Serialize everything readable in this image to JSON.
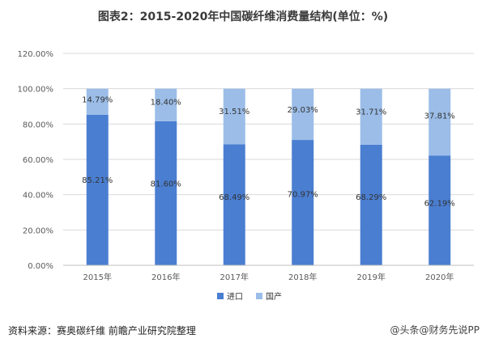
{
  "header": {
    "title": "图表2：2015-2020年中国碳纤维消费量结构(单位：%)"
  },
  "footer": {
    "source": "资料来源：赛奥碳纤维 前瞻产业研究院整理",
    "watermark": "@头条@财务先说PP"
  },
  "colors": {
    "import": "#4a7ed1",
    "domestic": "#9bbde8",
    "grid": "#d9d9d9",
    "axis": "#595959"
  },
  "chart_data": {
    "type": "bar",
    "stacked": true,
    "categories": [
      "2015年",
      "2016年",
      "2017年",
      "2018年",
      "2019年",
      "2020年"
    ],
    "series": [
      {
        "name": "进口",
        "values": [
          85.21,
          81.6,
          68.49,
          70.97,
          68.29,
          62.19
        ],
        "labels": [
          "85.21%",
          "81.60%",
          "68.49%",
          "70.97%",
          "68.29%",
          "62.19%"
        ]
      },
      {
        "name": "国产",
        "values": [
          14.79,
          18.4,
          31.51,
          29.03,
          31.71,
          37.81
        ],
        "labels": [
          "14.79%",
          "18.40%",
          "31.51%",
          "29.03%",
          "31.71%",
          "37.81%"
        ]
      }
    ],
    "yticks": [
      0,
      20,
      40,
      60,
      80,
      100,
      120
    ],
    "ytick_labels": [
      "0.00%",
      "20.00%",
      "40.00%",
      "60.00%",
      "80.00%",
      "100.00%",
      "120.00%"
    ],
    "ylim": [
      0,
      120
    ],
    "grid": true,
    "legend": "bottom"
  }
}
